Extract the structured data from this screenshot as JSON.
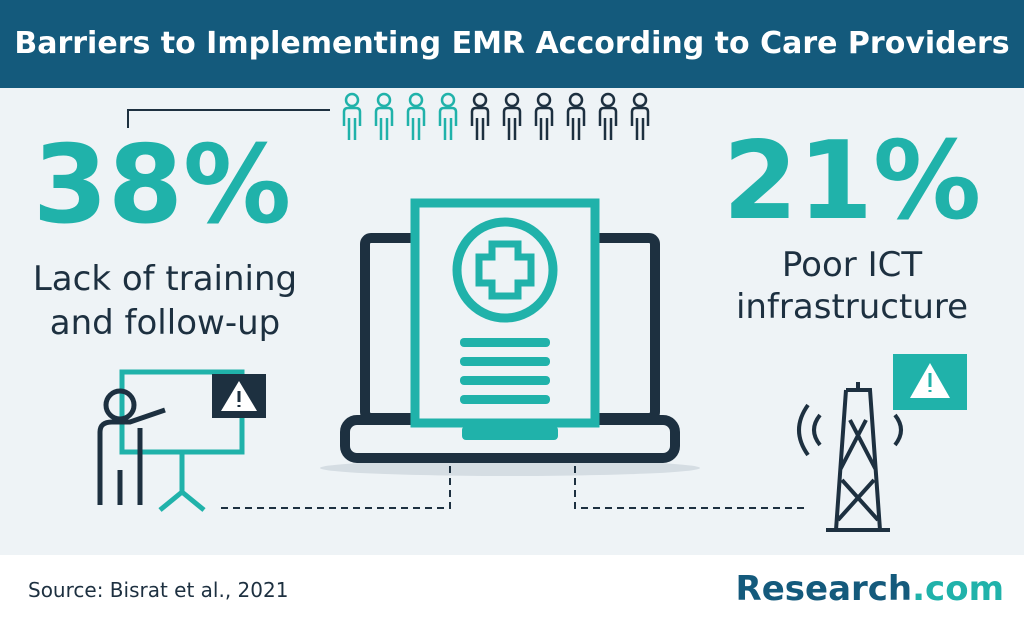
{
  "header": {
    "title": "Barriers to Implementing EMR According to Care Providers"
  },
  "stats": [
    {
      "value": "38%",
      "label_lines": [
        "Lack of training",
        "and follow-up"
      ]
    },
    {
      "value": "21%",
      "label_lines": [
        "Poor ICT",
        "infrastructure"
      ]
    }
  ],
  "footer": {
    "source": "Source: Bisrat et al., 2021",
    "brand": {
      "name": "Research",
      "suffix": ".com"
    }
  }
}
